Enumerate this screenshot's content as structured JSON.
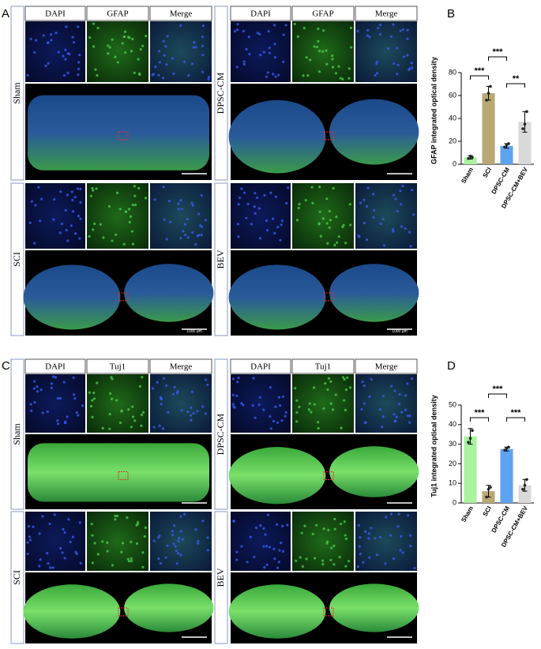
{
  "panel_a": {
    "letter": "A",
    "headers_left": [
      "DAPI",
      "GFAP",
      "Merge"
    ],
    "headers_right": [
      "DAPI",
      "GFAP",
      "Merge"
    ],
    "rows": [
      "Sham",
      "DPSC-CM",
      "SCI",
      "BEV"
    ],
    "scale_labels": [
      "1000 μm",
      "1000 μm"
    ]
  },
  "panel_c": {
    "letter": "C",
    "headers_left": [
      "DAPI",
      "Tuj1",
      "Merge"
    ],
    "headers_right": [
      "DAPI",
      "Tuj1",
      "Merge"
    ],
    "rows": [
      "Sham",
      "DPSC-CM",
      "SCI",
      "BEV"
    ]
  },
  "chart_data": [
    {
      "type": "bar",
      "letter": "B",
      "ylabel": "GFAP integrated optical density",
      "categories": [
        "Sham",
        "SCI",
        "DPSC-CM",
        "DPSC-CM+BEV"
      ],
      "values": [
        6,
        62,
        16,
        37
      ],
      "errors": [
        1.5,
        6,
        2,
        9
      ],
      "points": [
        [
          5,
          7,
          6
        ],
        [
          56,
          62,
          68
        ],
        [
          15,
          17,
          18
        ],
        [
          31,
          35,
          46
        ]
      ],
      "colors": [
        "#a9f2a0",
        "#b9a874",
        "#5ea3f2",
        "#d9d9d9"
      ],
      "ylim": [
        0,
        80
      ],
      "yticks": [
        0,
        20,
        40,
        60,
        80
      ],
      "annotations": [
        "***",
        "***",
        "**"
      ]
    },
    {
      "type": "bar",
      "letter": "D",
      "ylabel": "Tuj1 integrated optical density",
      "categories": [
        "Sham",
        "SCI",
        "DPSC-CM",
        "DPSC-CM+BEV"
      ],
      "values": [
        34,
        6,
        27.5,
        9
      ],
      "errors": [
        4,
        3,
        1,
        3
      ],
      "points": [
        [
          31,
          33,
          37
        ],
        [
          3,
          7,
          8
        ],
        [
          27,
          28,
          28.5
        ],
        [
          7,
          9,
          12
        ]
      ],
      "colors": [
        "#a9f2a0",
        "#b9a874",
        "#5ea3f2",
        "#d9d9d9"
      ],
      "ylim": [
        0,
        50
      ],
      "yticks": [
        0,
        10,
        20,
        30,
        40,
        50
      ],
      "annotations": [
        "***",
        "***",
        "***"
      ]
    }
  ]
}
